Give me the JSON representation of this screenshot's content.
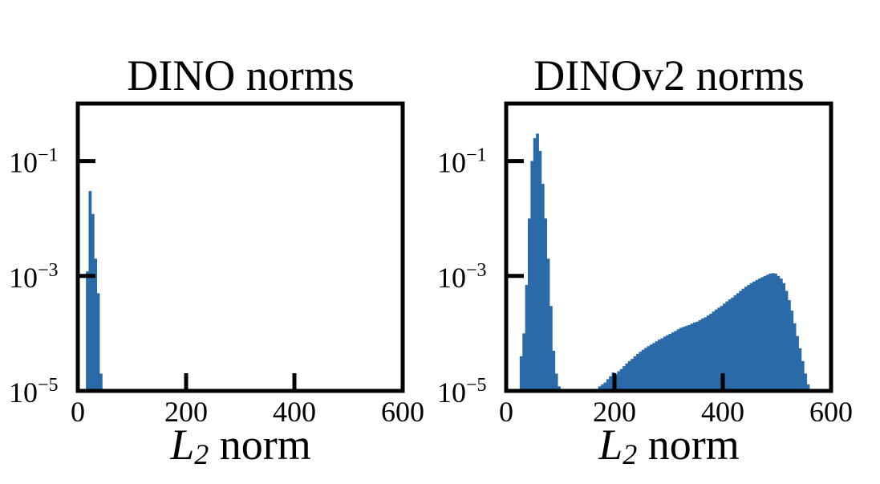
{
  "chart_data": [
    {
      "type": "bar",
      "title": "DINO norms",
      "xlabel": "L2 norm",
      "ylabel": "",
      "x_scale": "linear",
      "y_scale": "log",
      "xlim": [
        0,
        600
      ],
      "ylim": [
        1e-05,
        1
      ],
      "xticks": [
        0,
        200,
        400,
        600
      ],
      "xtick_labels": [
        "0",
        "200",
        "400",
        "600"
      ],
      "yticks": [
        0.1,
        0.001,
        1e-05
      ],
      "ytick_labels": [
        {
          "base": "10",
          "exp": "−1"
        },
        {
          "base": "10",
          "exp": "−3"
        },
        {
          "base": "10",
          "exp": "−5"
        }
      ],
      "grid": false,
      "color": "#2a6aa8",
      "bin_width": 5,
      "bins_x": [
        15,
        20,
        25,
        30,
        35,
        40
      ],
      "values": [
        0.0012,
        0.03,
        0.012,
        0.002,
        0.0005,
        2e-05
      ]
    },
    {
      "type": "bar",
      "title": "DINOv2 norms",
      "xlabel": "L2 norm",
      "ylabel": "",
      "x_scale": "linear",
      "y_scale": "log",
      "xlim": [
        0,
        600
      ],
      "ylim": [
        1e-05,
        1
      ],
      "xticks": [
        0,
        200,
        400,
        600
      ],
      "xtick_labels": [
        "0",
        "200",
        "400",
        "600"
      ],
      "yticks": [
        0.1,
        0.001,
        1e-05
      ],
      "ytick_labels": [
        {
          "base": "10",
          "exp": "−1"
        },
        {
          "base": "10",
          "exp": "−3"
        },
        {
          "base": "10",
          "exp": "−5"
        }
      ],
      "grid": false,
      "color": "#2a6aa8",
      "bin_width": 5,
      "bins_x": [
        25,
        30,
        35,
        40,
        45,
        50,
        55,
        60,
        65,
        70,
        75,
        80,
        85,
        90,
        95,
        100,
        170,
        175,
        180,
        185,
        190,
        195,
        200,
        205,
        210,
        215,
        220,
        225,
        230,
        235,
        240,
        245,
        250,
        255,
        260,
        265,
        270,
        275,
        280,
        285,
        290,
        295,
        300,
        305,
        310,
        315,
        320,
        325,
        330,
        335,
        340,
        345,
        350,
        355,
        360,
        365,
        370,
        375,
        380,
        385,
        390,
        395,
        400,
        405,
        410,
        415,
        420,
        425,
        430,
        435,
        440,
        445,
        450,
        455,
        460,
        465,
        470,
        475,
        480,
        485,
        490,
        495,
        500,
        505,
        510,
        515,
        520,
        525,
        530,
        535,
        540,
        545,
        550,
        555,
        560
      ],
      "values": [
        4e-05,
        0.0001,
        0.0007,
        0.01,
        0.1,
        0.25,
        0.3,
        0.15,
        0.04,
        0.01,
        0.002,
        0.0003,
        5e-05,
        2e-05,
        1.2e-05,
        1e-05,
        1.2e-05,
        1.3e-05,
        1.4e-05,
        1.6e-05,
        1.8e-05,
        2.1e-05,
        1.9e-05,
        2.2e-05,
        2.4e-05,
        2.7e-05,
        3e-05,
        3.3e-05,
        3.6e-05,
        4e-05,
        4.4e-05,
        4.8e-05,
        5.2e-05,
        5.6e-05,
        6e-05,
        6.4e-05,
        6.8e-05,
        7.3e-05,
        7.8e-05,
        8.2e-05,
        8.8e-05,
        9.3e-05,
        9.8e-05,
        0.000104,
        0.00011,
        0.000118,
        0.000125,
        0.00013,
        0.000135,
        0.00014,
        0.000148,
        0.000155,
        0.00016,
        0.00017,
        0.000182,
        0.00019,
        0.000205,
        0.00022,
        0.00024,
        0.00026,
        0.00028,
        0.0003,
        0.00033,
        0.00036,
        0.00039,
        0.00042,
        0.00046,
        0.0005,
        0.00055,
        0.0006,
        0.00065,
        0.0007,
        0.00075,
        0.0008,
        0.00085,
        0.0009,
        0.00095,
        0.001,
        0.00105,
        0.0011,
        0.00112,
        0.0011,
        0.001,
        0.0009,
        0.00075,
        0.00055,
        0.00038,
        0.00025,
        0.00015,
        9e-05,
        5.5e-05,
        3.3e-05,
        2e-05,
        1.3e-05,
        1e-05
      ]
    }
  ]
}
